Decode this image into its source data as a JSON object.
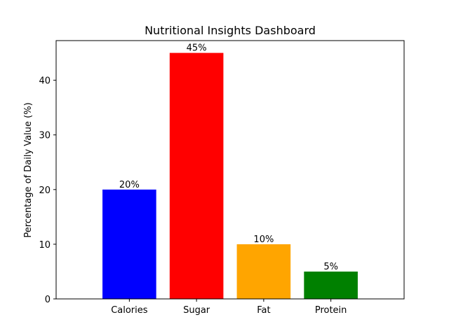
{
  "chart_data": {
    "type": "bar",
    "title": "Nutritional Insights Dashboard",
    "xlabel": "",
    "ylabel": "Percentage of Daily Value (%)",
    "categories": [
      "Calories",
      "Sugar",
      "Fat",
      "Protein"
    ],
    "values": [
      20,
      45,
      10,
      5
    ],
    "data_labels": [
      "20%",
      "45%",
      "10%",
      "5%"
    ],
    "colors": [
      "#0000ff",
      "#ff0000",
      "#ffa500",
      "#008000"
    ],
    "ylim": [
      0,
      47.25
    ],
    "yticks": [
      0,
      10,
      20,
      30,
      40
    ],
    "grid": false,
    "legend": "none"
  }
}
